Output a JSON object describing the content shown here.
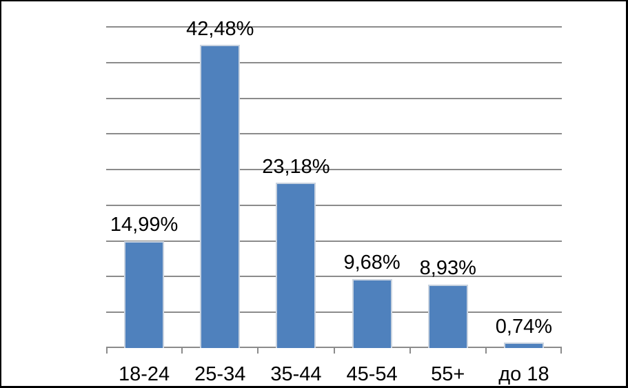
{
  "chart_data": {
    "type": "bar",
    "title": "",
    "xlabel": "",
    "ylabel": "",
    "categories": [
      "18-24",
      "25-34",
      "35-44",
      "45-54",
      "55+",
      "до 18"
    ],
    "values": [
      14.99,
      42.48,
      23.18,
      9.68,
      8.93,
      0.74
    ],
    "value_labels": [
      "14,99%",
      "42,48%",
      "23,18%",
      "9,68%",
      "8,93%",
      "0,74%"
    ],
    "decimal_separator": ",",
    "unit": "%",
    "ylim": [
      0,
      45
    ],
    "gridline_interval": 5,
    "grid": true,
    "legend": false,
    "y_axis_labels_visible": false,
    "colors": {
      "bar_fill": "#4F81BD",
      "bar_border": "#C9D3E0",
      "gridline": "#8B8B8B",
      "axis": "#8B8B8B",
      "text": "#000000",
      "background": "#FFFFFF",
      "frame_border": "#000000"
    }
  }
}
